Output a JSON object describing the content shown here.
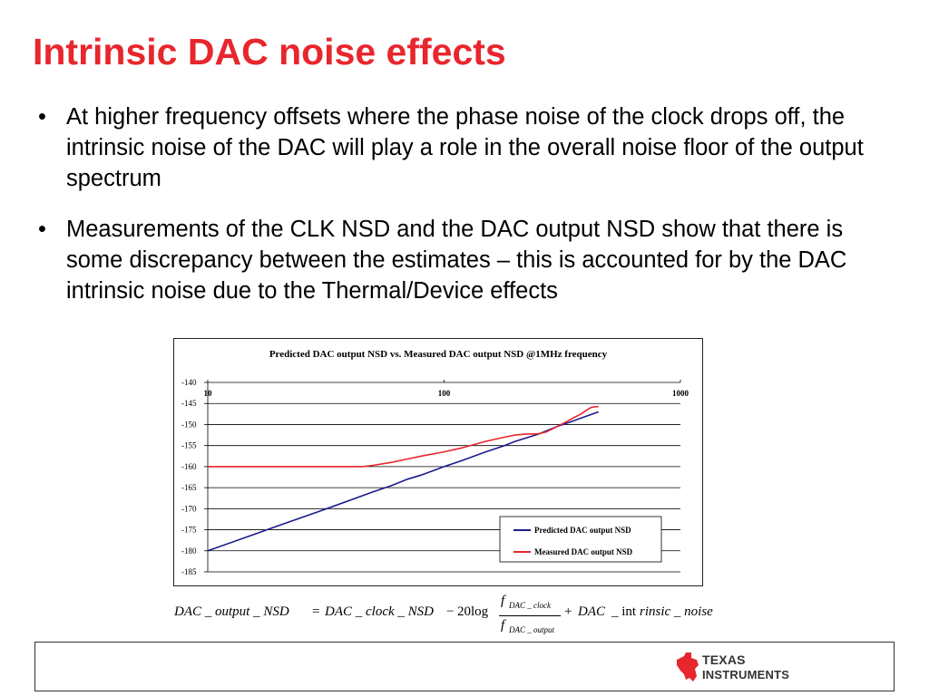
{
  "slide": {
    "title": "Intrinsic DAC noise effects",
    "bullets": [
      "At higher frequency offsets where the phase noise of the clock drops off, the intrinsic noise of the DAC will play a role in the overall noise floor of the output spectrum",
      "Measurements of the CLK NSD and the DAC output NSD show that there is some discrepancy between the estimates – this is accounted for by the DAC intrinsic noise due to the Thermal/Device effects"
    ],
    "bullet_glyph": "•"
  },
  "chart_data": {
    "type": "line",
    "title": "Predicted DAC output NSD vs. Measured DAC output NSD @1MHz frequency",
    "xlabel": "",
    "ylabel": "",
    "x_scale": "log",
    "xlim": [
      10,
      1000
    ],
    "ylim": [
      -185,
      -140
    ],
    "x_ticks": [
      "10",
      "100",
      "1000"
    ],
    "y_ticks": [
      "-140",
      "-145",
      "-150",
      "-155",
      "-160",
      "-165",
      "-170",
      "-175",
      "-180",
      "-185"
    ],
    "grid": true,
    "legend_position": "bottom-right",
    "series": [
      {
        "name": "Predicted DAC output NSD",
        "color": "#1a1a8c",
        "x": [
          10,
          15,
          20,
          30,
          40,
          50,
          60,
          70,
          80,
          100,
          120,
          150,
          180,
          200,
          250,
          300,
          350,
          400,
          450
        ],
        "y": [
          -180,
          -176.5,
          -174,
          -170.5,
          -168,
          -166,
          -164.5,
          -163,
          -162,
          -160,
          -158.5,
          -156.5,
          -155,
          -154,
          -152.3,
          -150.5,
          -149.2,
          -148,
          -147
        ]
      },
      {
        "name": "Measured DAC output NSD",
        "color": "#e8262d",
        "x": [
          10,
          15,
          20,
          30,
          40,
          45,
          50,
          60,
          70,
          80,
          100,
          120,
          150,
          180,
          200,
          220,
          250,
          270,
          300,
          330,
          350,
          380,
          400,
          420,
          450
        ],
        "y": [
          -160,
          -160,
          -160,
          -160,
          -160,
          -160,
          -159.7,
          -159,
          -158.2,
          -157.5,
          -156.5,
          -155.5,
          -154,
          -153,
          -152.5,
          -152.3,
          -152.2,
          -151.8,
          -150.5,
          -149.3,
          -148.5,
          -147.5,
          -146.6,
          -145.9,
          -145.7
        ]
      }
    ]
  },
  "formula": {
    "lhs": "DAC _ output _ NSD",
    "eq": "=",
    "term1": "DAC _ clock _ NSD",
    "minus": "−",
    "coef": "20log",
    "num_f": "f",
    "num_sub": "DAC _ clock",
    "den_f": "f",
    "den_sub": "DAC _ output",
    "plus": "+",
    "term2a": "DAC",
    "term2b": "_ int",
    "term2c": "rinsic _ noise"
  },
  "logo": {
    "line1": "TEXAS",
    "line2": "INSTRUMENTS",
    "color": "#e8262d"
  }
}
